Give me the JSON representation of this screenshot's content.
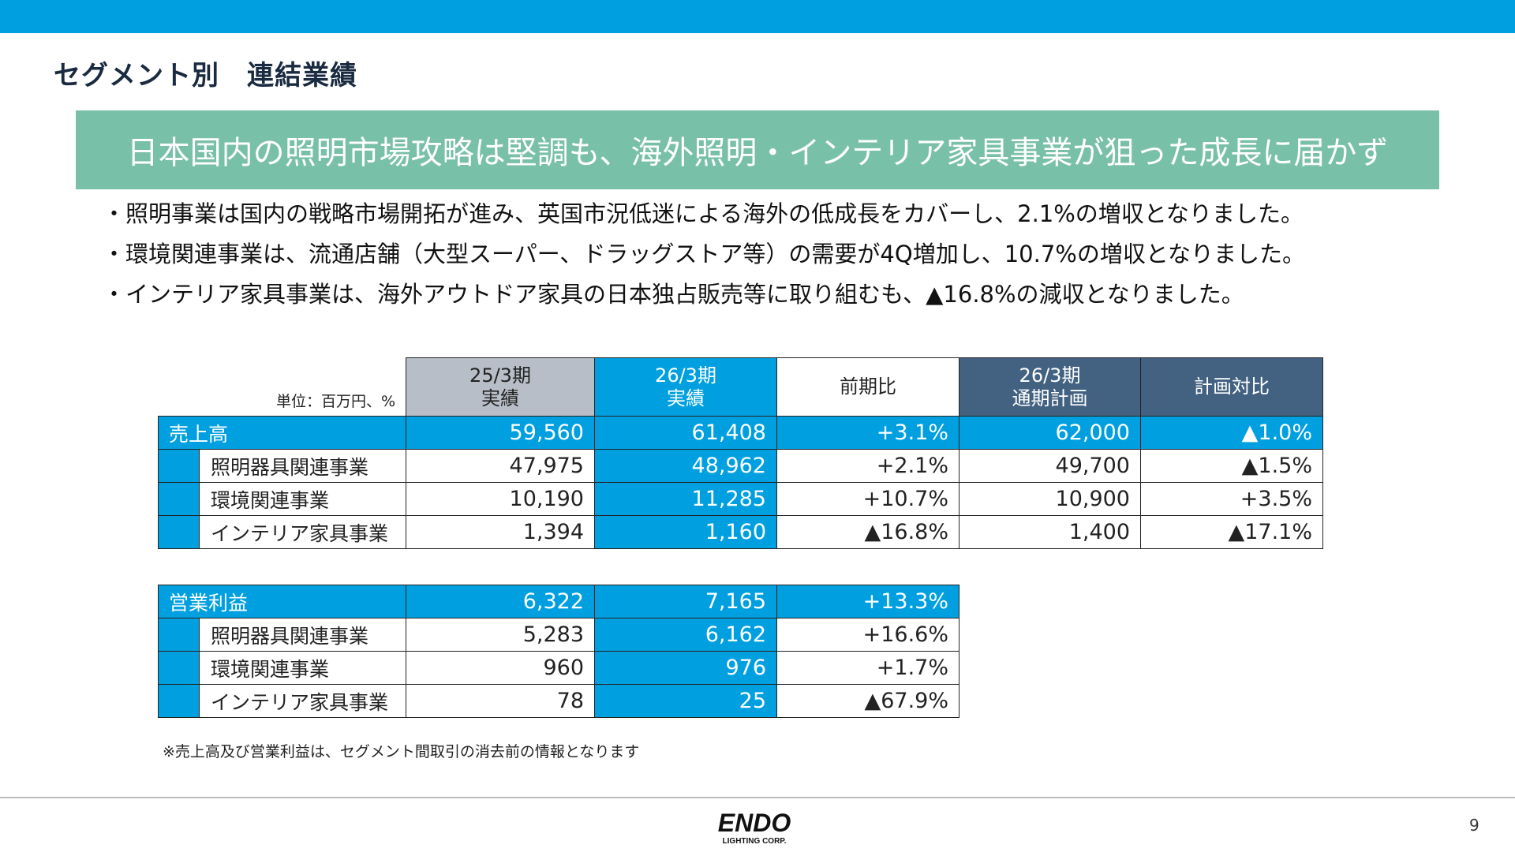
{
  "title": "セグメント別　連結業績",
  "banner": "日本国内の照明市場攻略は堅調も、海外照明・インテリア家具事業が狙った成長に届かず",
  "bullets": [
    "・照明事業は国内の戦略市場開拓が進み、英国市況低迷による海外の低成長をカバーし、2.1%の増収となりました。",
    "・環境関連事業は、流通店舗（大型スーパー、ドラッグストア等）の需要が4Q増加し、10.7%の増収となりました。",
    "・インテリア家具事業は、海外アウトドア家具の日本独占販売等に取り組むも、▲16.8%の減収となりました。"
  ],
  "sales_table": {
    "unit": "単位：百万円、%",
    "headers": [
      [
        "25/3期",
        "実績"
      ],
      [
        "26/3期",
        "実績"
      ],
      [
        "前期比"
      ],
      [
        "26/3期",
        "通期計画"
      ],
      [
        "計画対比"
      ]
    ],
    "rows": [
      {
        "label": "売上高",
        "values": [
          "59,560",
          "61,408",
          "+3.1%",
          "62,000",
          "▲1.0%"
        ]
      },
      {
        "label": "照明器具関連事業",
        "values": [
          "47,975",
          "48,962",
          "+2.1%",
          "49,700",
          "▲1.5%"
        ]
      },
      {
        "label": "環境関連事業",
        "values": [
          "10,190",
          "11,285",
          "+10.7%",
          "10,900",
          "+3.5%"
        ]
      },
      {
        "label": "インテリア家具事業",
        "values": [
          "1,394",
          "1,160",
          "▲16.8%",
          "1,400",
          "▲17.1%"
        ]
      }
    ]
  },
  "profit_table": {
    "rows": [
      {
        "label": "営業利益",
        "values": [
          "6,322",
          "7,165",
          "+13.3%"
        ]
      },
      {
        "label": "照明器具関連事業",
        "values": [
          "5,283",
          "6,162",
          "+16.6%"
        ]
      },
      {
        "label": "環境関連事業",
        "values": [
          "960",
          "976",
          "+1.7%"
        ]
      },
      {
        "label": "インテリア家具事業",
        "values": [
          "78",
          "25",
          "▲67.9%"
        ]
      }
    ]
  },
  "footnote": "※売上高及び営業利益は、セグメント間取引の消去前の情報となります",
  "logo": {
    "text": "ENDO",
    "subtext": "LIGHTING CORP."
  },
  "page_number": "9",
  "colors": {
    "accent_blue": "#00a0e0",
    "banner_green": "#79c0a8",
    "navy": "#436282",
    "gray": "#b8bec7"
  }
}
